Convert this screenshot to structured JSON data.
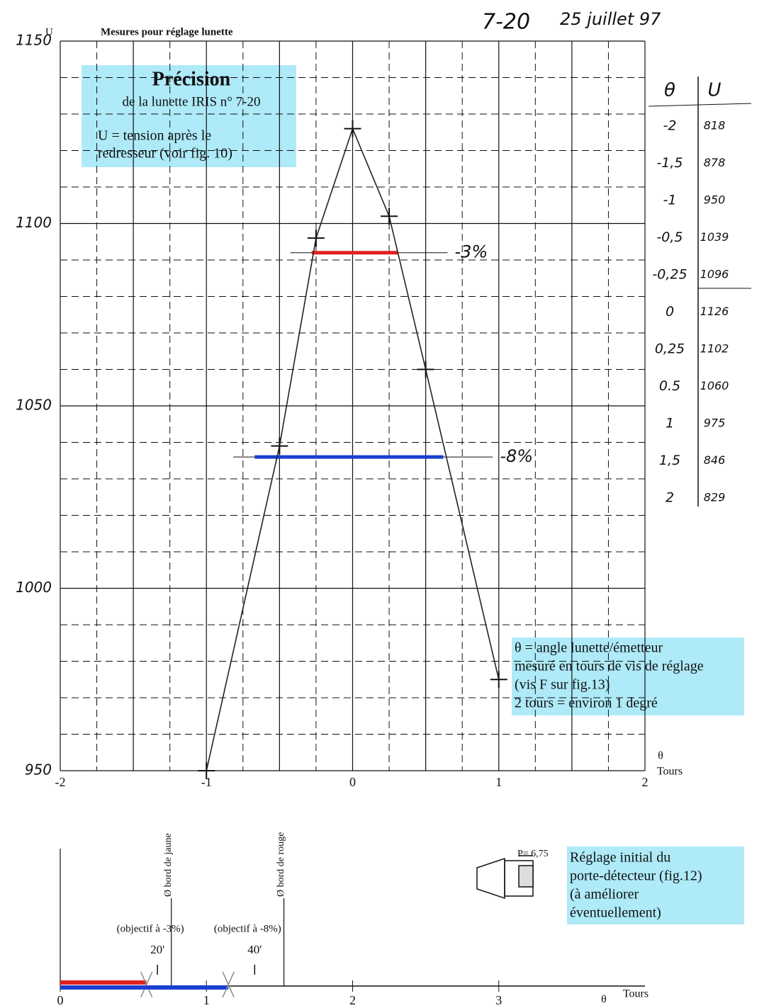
{
  "header": {
    "ref": "7-20",
    "date": "25 juillet 97"
  },
  "chart_data": {
    "type": "line",
    "title": "Mesures pour réglage lunette",
    "y_label": "U",
    "x_label": "θ",
    "x_unit": "Tours",
    "x": [
      -1,
      -0.5,
      -0.25,
      0,
      0.25,
      0.5,
      1
    ],
    "series": [
      {
        "color": "#222222",
        "values": [
          950,
          1039,
          1096,
          1126,
          1102,
          1060,
          975
        ]
      }
    ],
    "xlim": [
      -2,
      2
    ],
    "ylim": [
      950,
      1150
    ],
    "xticks": [
      -2,
      -1,
      0,
      1,
      2
    ],
    "yticks": [
      950,
      1000,
      1050,
      1100,
      1150
    ],
    "grid": true,
    "levels": [
      {
        "label": "-3%",
        "color": "#e02020",
        "value": 1092,
        "x": [
          -0.28,
          0.31
        ]
      },
      {
        "label": "-8%",
        "color": "#1a3fd0",
        "value": 1036,
        "x": [
          -0.67,
          0.62
        ]
      }
    ]
  },
  "annotations": {
    "precision": {
      "title": "Précision",
      "lines": [
        "de la lunette  IRIS n° 7-20",
        "U = tension après le",
        "redresseur  (voir fig. 10)"
      ]
    },
    "theta": {
      "lines": [
        "θ = angle lunette/émetteur",
        "mesuré en tours de vis de réglage",
        "(vis F sur fig.13)",
        "2 tours = environ 1 degré"
      ]
    },
    "reglage": {
      "p": "P= 6,75",
      "lines": [
        "Réglage initial du",
        "porte-détecteur (fig.12)",
        "(à améliorer",
        "éventuellement)"
      ]
    }
  },
  "table": {
    "header": [
      "θ",
      "U"
    ],
    "rows": [
      [
        "-2",
        "818"
      ],
      [
        "-1,5",
        "878"
      ],
      [
        "-1",
        "950"
      ],
      [
        "-0,5",
        "1039"
      ],
      [
        "-0,25",
        "1096"
      ],
      [
        "0",
        "1126"
      ],
      [
        "0,25",
        "1102"
      ],
      [
        "0.5",
        "1060"
      ],
      [
        "1",
        "975"
      ],
      [
        "1,5",
        "846"
      ],
      [
        "2",
        "829"
      ]
    ]
  },
  "bottom_scale": {
    "xlim": [
      0,
      4
    ],
    "xticks": [
      0,
      1,
      2,
      3
    ],
    "x_label": "θ",
    "x_unit": "Tours",
    "markers": [
      {
        "label": "Ø bord de jaune",
        "value": 0.76
      },
      {
        "label": "Ø bord de rouge",
        "value": 1.53
      }
    ],
    "objectives": [
      {
        "label": "(objectif à -3%)",
        "minutes": "20'",
        "value": 0.665
      },
      {
        "label": "(objectif à -8%)",
        "minutes": "40'",
        "value": 1.33
      }
    ],
    "bars": [
      {
        "color": "#e02020",
        "value": 0.59
      },
      {
        "color": "#1a3fd0",
        "value": 1.15
      }
    ]
  }
}
